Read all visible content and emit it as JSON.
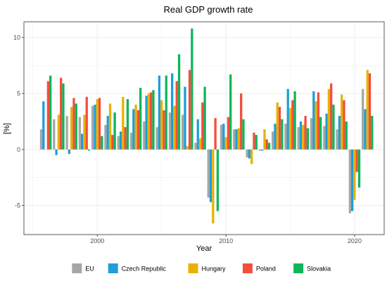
{
  "chart_data": {
    "type": "bar",
    "title": "Real GDP growth rate",
    "xlabel": "Year",
    "ylabel": "[%]",
    "ylim": [
      -7.6,
      11.4
    ],
    "xlim": [
      1994.3,
      2022.3
    ],
    "y_ticks": [
      -5,
      0,
      5,
      10
    ],
    "y_tick_labels": [
      "-5",
      "0",
      "5",
      "10"
    ],
    "x_ticks": [
      2000,
      2010,
      2020
    ],
    "x_tick_labels": [
      "2000",
      "2010",
      "2020"
    ],
    "grid": true,
    "legend_position": "bottom",
    "x": [
      1996,
      1997,
      1998,
      1999,
      2000,
      2001,
      2002,
      2003,
      2004,
      2005,
      2006,
      2007,
      2008,
      2009,
      2010,
      2011,
      2012,
      2013,
      2014,
      2015,
      2016,
      2017,
      2018,
      2019,
      2020,
      2021
    ],
    "series": [
      {
        "name": "EU",
        "color": "#a6a6a6",
        "values": [
          1.8,
          2.7,
          3.0,
          2.9,
          3.9,
          2.2,
          1.2,
          1.5,
          2.5,
          2.0,
          3.3,
          3.1,
          0.6,
          -4.3,
          2.2,
          1.8,
          -0.7,
          -0.1,
          1.6,
          2.3,
          2.0,
          2.8,
          2.1,
          1.8,
          -5.7,
          5.4
        ]
      },
      {
        "name": "Czech Republic",
        "color": "#1f9ed8",
        "values": [
          4.3,
          -0.5,
          -0.4,
          1.4,
          4.0,
          3.0,
          1.6,
          3.6,
          4.8,
          6.6,
          6.8,
          5.6,
          2.7,
          -4.7,
          2.3,
          1.8,
          -0.8,
          -0.1,
          2.3,
          5.4,
          2.5,
          5.2,
          3.2,
          3.0,
          -5.5,
          3.6
        ]
      },
      {
        "name": "Hungary",
        "color": "#e8b100",
        "values": [
          0.0,
          3.1,
          3.8,
          3.1,
          4.5,
          4.1,
          4.7,
          4.0,
          5.0,
          4.4,
          3.9,
          0.3,
          1.0,
          -6.6,
          1.1,
          1.9,
          -1.3,
          1.8,
          4.2,
          3.7,
          2.2,
          4.3,
          5.4,
          4.9,
          -4.5,
          7.1
        ]
      },
      {
        "name": "Poland",
        "color": "#f24e3c",
        "values": [
          6.1,
          6.4,
          4.6,
          4.7,
          4.6,
          1.3,
          2.0,
          3.5,
          5.1,
          3.5,
          6.1,
          7.1,
          4.2,
          2.8,
          2.9,
          5.0,
          1.5,
          0.9,
          3.8,
          4.4,
          3.0,
          5.1,
          5.9,
          4.4,
          -2.0,
          6.8
        ]
      },
      {
        "name": "Slovakia",
        "color": "#0db65a",
        "values": [
          6.6,
          5.9,
          4.1,
          -0.1,
          1.2,
          3.3,
          4.5,
          5.5,
          5.3,
          6.6,
          8.5,
          10.8,
          5.6,
          -5.5,
          6.7,
          2.7,
          1.3,
          0.6,
          2.7,
          5.2,
          1.9,
          2.9,
          4.0,
          2.5,
          -3.4,
          3.0
        ]
      }
    ]
  }
}
